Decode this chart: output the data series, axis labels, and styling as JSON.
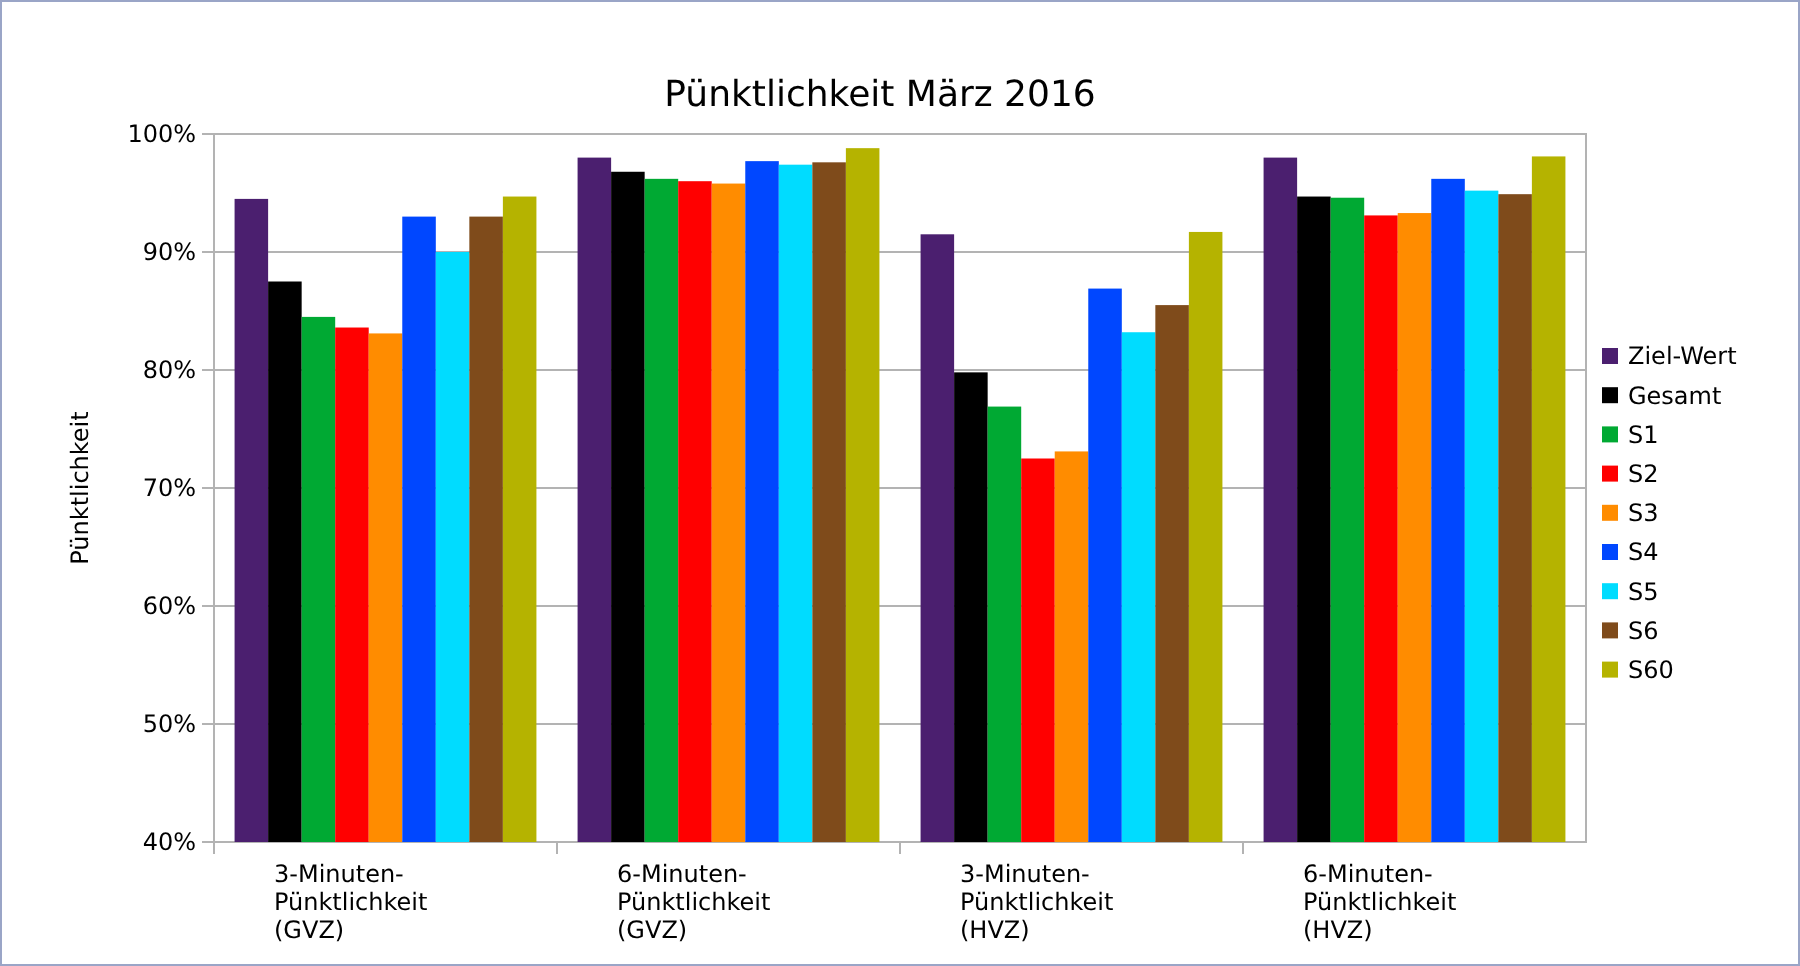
{
  "chart_data": {
    "type": "bar",
    "title": "Pünktlichkeit März 2016",
    "ylabel": "Pünktlichkeit",
    "categories": [
      "3-Minuten-\nPünktlichkeit\n(GVZ)",
      "6-Minuten-\nPünktlichkeit\n(GVZ)",
      "3-Minuten-\nPünktlichkeit\n(HVZ)",
      "6-Minuten-\nPünktlichkeit\n(HVZ)"
    ],
    "series": [
      {
        "name": "Ziel-Wert",
        "color": "#4b1f6f",
        "values": [
          94.5,
          98.0,
          91.5,
          98.0
        ]
      },
      {
        "name": "Gesamt",
        "color": "#000000",
        "values": [
          87.5,
          96.8,
          79.8,
          94.7
        ]
      },
      {
        "name": "S1",
        "color": "#00a933",
        "values": [
          84.5,
          96.2,
          76.9,
          94.6
        ]
      },
      {
        "name": "S2",
        "color": "#ff0000",
        "values": [
          83.6,
          96.0,
          72.5,
          93.1
        ]
      },
      {
        "name": "S3",
        "color": "#ff8c00",
        "values": [
          83.1,
          95.8,
          73.1,
          93.3
        ]
      },
      {
        "name": "S4",
        "color": "#0047ff",
        "values": [
          93.0,
          97.7,
          86.9,
          96.2
        ]
      },
      {
        "name": "S5",
        "color": "#00dcff",
        "values": [
          90.0,
          97.4,
          83.2,
          95.2
        ]
      },
      {
        "name": "S6",
        "color": "#7f4b1b",
        "values": [
          93.0,
          97.6,
          85.5,
          94.9
        ]
      },
      {
        "name": "S60",
        "color": "#b5b300",
        "values": [
          94.7,
          98.8,
          91.7,
          98.1
        ]
      }
    ],
    "ylim": [
      40,
      100
    ],
    "yticks": [
      {
        "value": 40,
        "label": "40%"
      },
      {
        "value": 50,
        "label": "50%"
      },
      {
        "value": 60,
        "label": "60%"
      },
      {
        "value": 70,
        "label": "70%"
      },
      {
        "value": 80,
        "label": "80%"
      },
      {
        "value": 90,
        "label": "90%"
      },
      {
        "value": 100,
        "label": "100%"
      }
    ],
    "grid": "y",
    "legend": "right"
  }
}
